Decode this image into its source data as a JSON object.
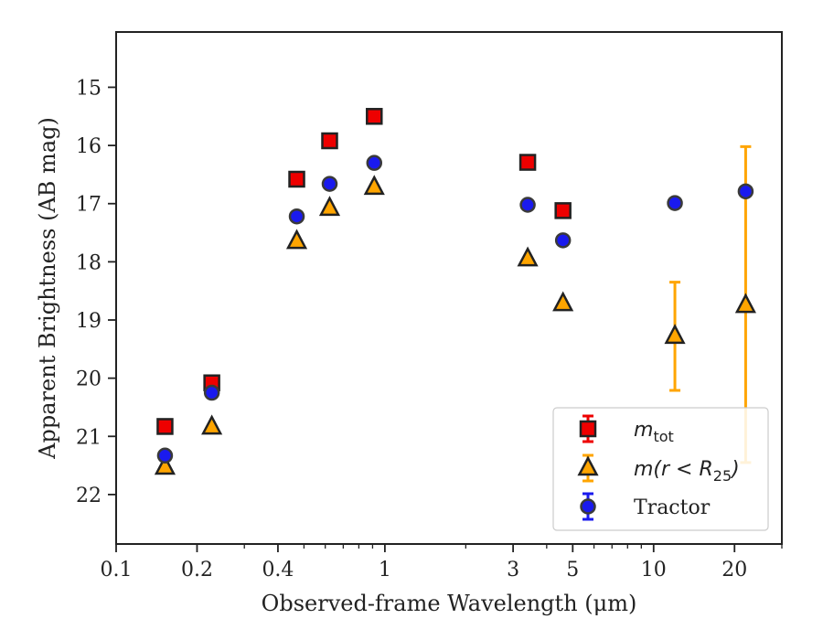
{
  "chart_data": {
    "type": "scatter",
    "title": "",
    "xlabel": "Observed-frame Wavelength (μm)",
    "ylabel": "Apparent Brightness (AB mag)",
    "xscale": "log",
    "xlim": [
      0.1,
      30
    ],
    "ylim": [
      22.85,
      14.05
    ],
    "y_inverted": true,
    "grid": false,
    "legend_position": "lower-right",
    "xticks": [
      0.1,
      0.2,
      0.4,
      1,
      3,
      5,
      10,
      20
    ],
    "xtick_labels": [
      "0.1",
      "0.2",
      "0.4",
      "1",
      "3",
      "5",
      "10",
      "20"
    ],
    "yticks": [
      15,
      16,
      17,
      18,
      19,
      20,
      21,
      22
    ],
    "ytick_labels": [
      "15",
      "16",
      "17",
      "18",
      "19",
      "20",
      "21",
      "22"
    ],
    "series": [
      {
        "name": "m_tot",
        "marker": "square",
        "color": "#ee0000",
        "edge_color": "#222222",
        "points": [
          {
            "x": 0.152,
            "y": 20.83,
            "err": 0.1
          },
          {
            "x": 0.227,
            "y": 20.08,
            "err": 0.1
          },
          {
            "x": 0.47,
            "y": 16.58,
            "err": 0
          },
          {
            "x": 0.623,
            "y": 15.92,
            "err": 0
          },
          {
            "x": 0.913,
            "y": 15.5,
            "err": 0
          },
          {
            "x": 3.4,
            "y": 16.29,
            "err": 0
          },
          {
            "x": 4.6,
            "y": 17.12,
            "err": 0
          }
        ]
      },
      {
        "name": "m(r < R25)",
        "marker": "triangle",
        "color": "#ffa500",
        "edge_color": "#222222",
        "points": [
          {
            "x": 0.152,
            "y": 21.53,
            "err": 0
          },
          {
            "x": 0.227,
            "y": 20.84,
            "err": 0
          },
          {
            "x": 0.47,
            "y": 17.65,
            "err": 0
          },
          {
            "x": 0.623,
            "y": 17.08,
            "err": 0
          },
          {
            "x": 0.913,
            "y": 16.72,
            "err": 0
          },
          {
            "x": 3.4,
            "y": 17.95,
            "err": 0
          },
          {
            "x": 4.6,
            "y": 18.72,
            "err": 0
          },
          {
            "x": 12,
            "y": 19.28,
            "err_low": 0.93,
            "err_high": 0.93
          },
          {
            "x": 22,
            "y": 18.75,
            "err_low": 2.7,
            "err_high": 2.73
          }
        ]
      },
      {
        "name": "Tractor",
        "marker": "circle",
        "color": "#1a1aee",
        "edge_color": "#3a3a3a",
        "points": [
          {
            "x": 0.152,
            "y": 21.33,
            "err": 0.06
          },
          {
            "x": 0.227,
            "y": 20.25,
            "err": 0.06
          },
          {
            "x": 0.47,
            "y": 17.22,
            "err": 0.05
          },
          {
            "x": 0.623,
            "y": 16.66,
            "err": 0.05
          },
          {
            "x": 0.913,
            "y": 16.3,
            "err": 0.05
          },
          {
            "x": 3.4,
            "y": 17.02,
            "err": 0.05
          },
          {
            "x": 4.6,
            "y": 17.63,
            "err": 0.05
          },
          {
            "x": 12,
            "y": 16.99,
            "err": 0.05
          },
          {
            "x": 22,
            "y": 16.79,
            "err": 0.06
          }
        ]
      }
    ],
    "legend": {
      "entries": [
        {
          "series": 0,
          "main": "m",
          "sub": "tot",
          "suffix": ""
        },
        {
          "series": 1,
          "main": "m(r < R",
          "sub": "25",
          "suffix": ")"
        },
        {
          "series": 2,
          "main": "Tractor",
          "sub": "",
          "suffix": ""
        }
      ]
    }
  }
}
